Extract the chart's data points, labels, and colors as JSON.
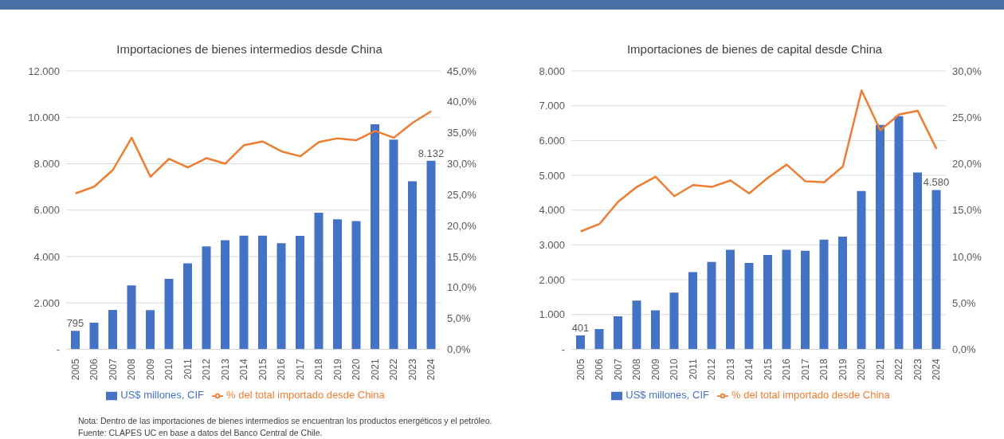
{
  "chart_data": [
    {
      "type": "bar",
      "title": "Importaciones de bienes intermedios desde China",
      "categories": [
        "2005",
        "2006",
        "2007",
        "2008",
        "2009",
        "2010",
        "2011",
        "2012",
        "2013",
        "2014",
        "2015",
        "2016",
        "2017",
        "2018",
        "2019",
        "2020",
        "2021",
        "2022",
        "2023",
        "2024"
      ],
      "series": [
        {
          "name": "US$ millones, CIF",
          "color": "#4472c4",
          "values": [
            795,
            1150,
            1700,
            2750,
            1690,
            3040,
            3710,
            4440,
            4700,
            4900,
            4900,
            4570,
            4890,
            5890,
            5600,
            5530,
            9700,
            9040,
            7240,
            8132
          ],
          "value_labels": [
            "795",
            null,
            null,
            null,
            null,
            null,
            null,
            null,
            null,
            null,
            null,
            null,
            null,
            null,
            null,
            null,
            null,
            null,
            null,
            "8.132"
          ]
        },
        {
          "type": "line",
          "name": "% del total importado desde China",
          "color": "#ed7d31",
          "axis": "y2",
          "values": [
            25.2,
            26.3,
            29.0,
            34.2,
            27.9,
            30.8,
            29.4,
            30.9,
            30.0,
            33.0,
            33.6,
            32.0,
            31.2,
            33.5,
            34.1,
            33.8,
            35.3,
            34.2,
            36.6,
            38.5
          ]
        }
      ],
      "ylim": [
        0,
        12000
      ],
      "yticks": [
        {
          "value": 0,
          "label": "-"
        },
        {
          "value": 2000,
          "label": "2.000"
        },
        {
          "value": 4000,
          "label": "4.000"
        },
        {
          "value": 6000,
          "label": "6.000"
        },
        {
          "value": 8000,
          "label": "8.000"
        },
        {
          "value": 10000,
          "label": "10.000"
        },
        {
          "value": 12000,
          "label": "12.000"
        }
      ],
      "y2lim": [
        0,
        45
      ],
      "y2ticks": [
        {
          "value": 0,
          "label": "0,0%"
        },
        {
          "value": 5,
          "label": "5,0%"
        },
        {
          "value": 10,
          "label": "10,0%"
        },
        {
          "value": 15,
          "label": "15,0%"
        },
        {
          "value": 20,
          "label": "20,0%"
        },
        {
          "value": 25,
          "label": "25,0%"
        },
        {
          "value": 30,
          "label": "30,0%"
        },
        {
          "value": 35,
          "label": "35,0%"
        },
        {
          "value": 40,
          "label": "40,0%"
        },
        {
          "value": 45,
          "label": "45,0%"
        }
      ],
      "grid": "y",
      "legend": "bottom",
      "marker": "none",
      "annotations": [
        "Nota: Dentro de las importaciones de bienes intermedios se encuentran los productos energéticos y el petróleo.",
        "Fuente: CLAPES UC en base a datos del Banco Central de Chile."
      ]
    },
    {
      "type": "bar",
      "title": "Importaciones de bienes de capital desde China",
      "categories": [
        "2005",
        "2006",
        "2007",
        "2008",
        "2009",
        "2010",
        "2011",
        "2012",
        "2013",
        "2014",
        "2015",
        "2016",
        "2017",
        "2018",
        "2019",
        "2020",
        "2021",
        "2022",
        "2023",
        "2024"
      ],
      "series": [
        {
          "name": "US$ millones, CIF",
          "color": "#4472c4",
          "values": [
            401,
            580,
            950,
            1400,
            1120,
            1630,
            2220,
            2510,
            2860,
            2480,
            2710,
            2860,
            2830,
            3150,
            3240,
            4550,
            6450,
            6700,
            5080,
            4580
          ],
          "value_labels": [
            "401",
            null,
            null,
            null,
            null,
            null,
            null,
            null,
            null,
            null,
            null,
            null,
            null,
            null,
            null,
            null,
            null,
            null,
            null,
            "4.580"
          ]
        },
        {
          "type": "line",
          "name": "% del total importado desde China",
          "color": "#ed7d31",
          "axis": "y2",
          "values": [
            12.7,
            13.5,
            15.9,
            17.5,
            18.6,
            16.5,
            17.7,
            17.5,
            18.2,
            16.8,
            18.5,
            19.9,
            18.1,
            18.0,
            19.7,
            27.9,
            23.6,
            25.3,
            25.7,
            21.6
          ]
        }
      ],
      "ylim": [
        0,
        8000
      ],
      "yticks": [
        {
          "value": 0,
          "label": "-"
        },
        {
          "value": 1000,
          "label": "1.000"
        },
        {
          "value": 2000,
          "label": "2.000"
        },
        {
          "value": 3000,
          "label": "3.000"
        },
        {
          "value": 4000,
          "label": "4.000"
        },
        {
          "value": 5000,
          "label": "5.000"
        },
        {
          "value": 6000,
          "label": "6.000"
        },
        {
          "value": 7000,
          "label": "7.000"
        },
        {
          "value": 8000,
          "label": "8.000"
        }
      ],
      "y2lim": [
        0,
        30
      ],
      "y2ticks": [
        {
          "value": 0,
          "label": "0,0%"
        },
        {
          "value": 5,
          "label": "5,0%"
        },
        {
          "value": 10,
          "label": "10,0%"
        },
        {
          "value": 15,
          "label": "15,0%"
        },
        {
          "value": 20,
          "label": "20,0%"
        },
        {
          "value": 25,
          "label": "25,0%"
        },
        {
          "value": 30,
          "label": "30,0%"
        }
      ],
      "grid": "y",
      "legend": "bottom",
      "marker": "none"
    }
  ]
}
